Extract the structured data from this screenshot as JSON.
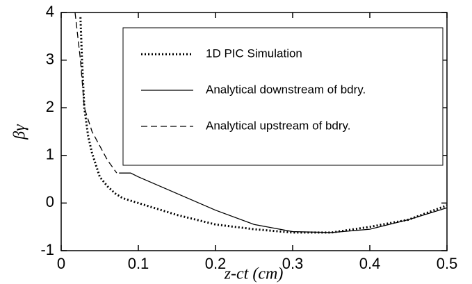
{
  "chart_data": {
    "type": "line",
    "x_label": "z-ct (cm)",
    "y_label": "βγ",
    "xlim": [
      0,
      0.5
    ],
    "xticks": [
      0,
      0.1,
      0.2,
      0.3,
      0.4,
      0.5
    ],
    "ylim": [
      -1,
      4
    ],
    "yticks": [
      -1,
      0,
      1,
      2,
      3,
      4
    ],
    "series": [
      {
        "name": "1D PIC Simulation",
        "color": "#000",
        "width": 3,
        "dash": "2,3",
        "x": [
          0.025,
          0.027,
          0.03,
          0.035,
          0.04,
          0.05,
          0.06,
          0.07,
          0.08,
          0.1,
          0.15,
          0.2,
          0.25,
          0.3,
          0.35,
          0.4,
          0.45,
          0.5
        ],
        "values": [
          3.9,
          3.0,
          2.0,
          1.4,
          1.05,
          0.55,
          0.35,
          0.2,
          0.1,
          0.0,
          -0.25,
          -0.45,
          -0.55,
          -0.62,
          -0.62,
          -0.5,
          -0.35,
          -0.05
        ]
      },
      {
        "name": "Analytical downstream of bdry.",
        "color": "#000",
        "width": 1.3,
        "dash": "none",
        "x": [
          0.075,
          0.09,
          0.1,
          0.15,
          0.2,
          0.25,
          0.3,
          0.35,
          0.4,
          0.45,
          0.5
        ],
        "values": [
          0.63,
          0.63,
          0.55,
          0.2,
          -0.15,
          -0.45,
          -0.6,
          -0.62,
          -0.55,
          -0.35,
          -0.1
        ]
      },
      {
        "name": "Analytical upstream of bdry.",
        "color": "#000",
        "width": 1.3,
        "dash": "9,5",
        "x": [
          0.018,
          0.025,
          0.03,
          0.04,
          0.05,
          0.06,
          0.072
        ],
        "values": [
          4,
          3.0,
          2.0,
          1.5,
          1.2,
          0.9,
          0.63
        ]
      }
    ]
  }
}
